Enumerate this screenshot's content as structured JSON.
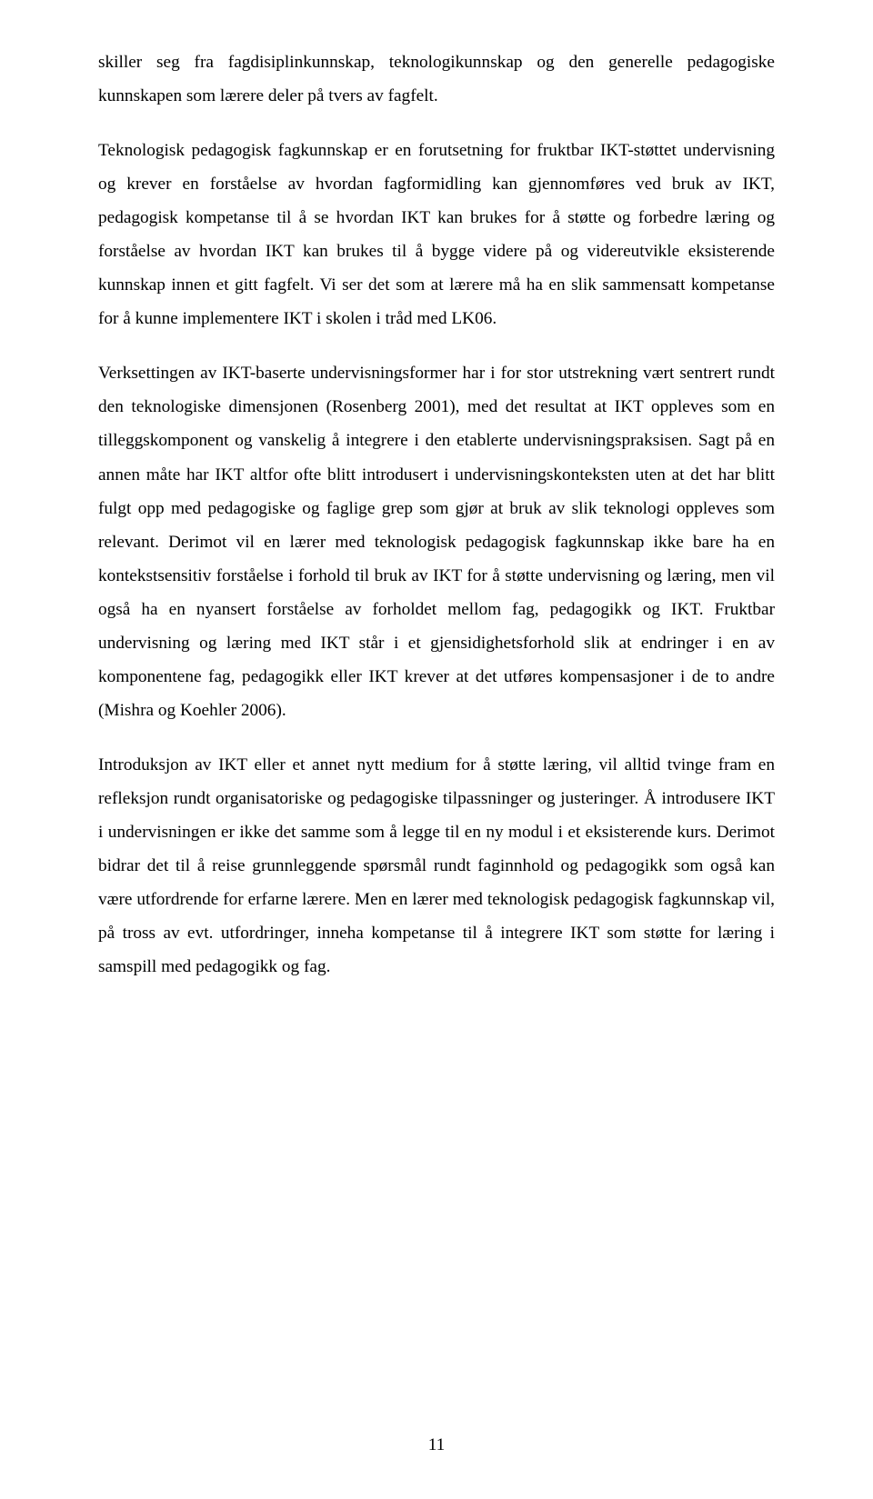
{
  "page": {
    "paragraphs": [
      "skiller seg fra fagdisiplinkunnskap, teknologikunnskap og den generelle pedagogiske kunnskapen som lærere deler på tvers av fagfelt.",
      "Teknologisk pedagogisk fagkunnskap er en forutsetning for fruktbar IKT-støttet undervisning og krever en forståelse av hvordan fagformidling kan gjennomføres ved bruk av IKT, pedagogisk kompetanse til å se hvordan IKT kan brukes for å støtte og forbedre læring og forståelse av hvordan IKT kan brukes til å bygge videre på og videreutvikle eksisterende kunnskap innen et gitt fagfelt. Vi ser det som at lærere må ha en slik sammensatt kompetanse for å kunne implementere IKT i skolen i tråd med LK06.",
      "Verksettingen av IKT-baserte undervisningsformer har i for stor utstrekning vært sentrert rundt den teknologiske dimensjonen (Rosenberg 2001), med det resultat at IKT oppleves som en tilleggskomponent og vanskelig å integrere i den etablerte undervisningspraksisen. Sagt på en annen måte har IKT altfor ofte blitt introdusert i undervisningskonteksten uten at det har blitt fulgt opp med pedagogiske og faglige grep som gjør at bruk av slik teknologi oppleves som relevant. Derimot vil en lærer med teknologisk pedagogisk fagkunnskap ikke bare ha en kontekstsensitiv forståelse i forhold til bruk av IKT for å støtte undervisning og læring, men vil også ha en nyansert forståelse av forholdet mellom fag, pedagogikk og IKT. Fruktbar undervisning og læring med IKT står i et gjensidighetsforhold slik at endringer i en av komponentene fag, pedagogikk eller IKT krever at det utføres kompensasjoner i de to andre (Mishra og Koehler 2006).",
      "Introduksjon av IKT eller et annet nytt medium for å støtte læring, vil alltid tvinge fram en refleksjon rundt organisatoriske og pedagogiske tilpassninger og justeringer. Å introdusere IKT i undervisningen er ikke det samme som å legge til en ny modul i et eksisterende kurs. Derimot bidrar det til å reise grunnleggende spørsmål rundt faginnhold og pedagogikk som også kan være utfordrende for erfarne lærere. Men en lærer med teknologisk pedagogisk fagkunnskap vil, på tross av evt. utfordringer, inneha kompetanse til å integrere IKT som støtte for læring i samspill med pedagogikk og fag."
    ],
    "page_number": "11"
  },
  "style": {
    "font_family": "Times New Roman",
    "font_size_pt": 12,
    "line_height": 1.92,
    "text_color": "#000000",
    "background_color": "#ffffff",
    "text_align": "justify"
  }
}
